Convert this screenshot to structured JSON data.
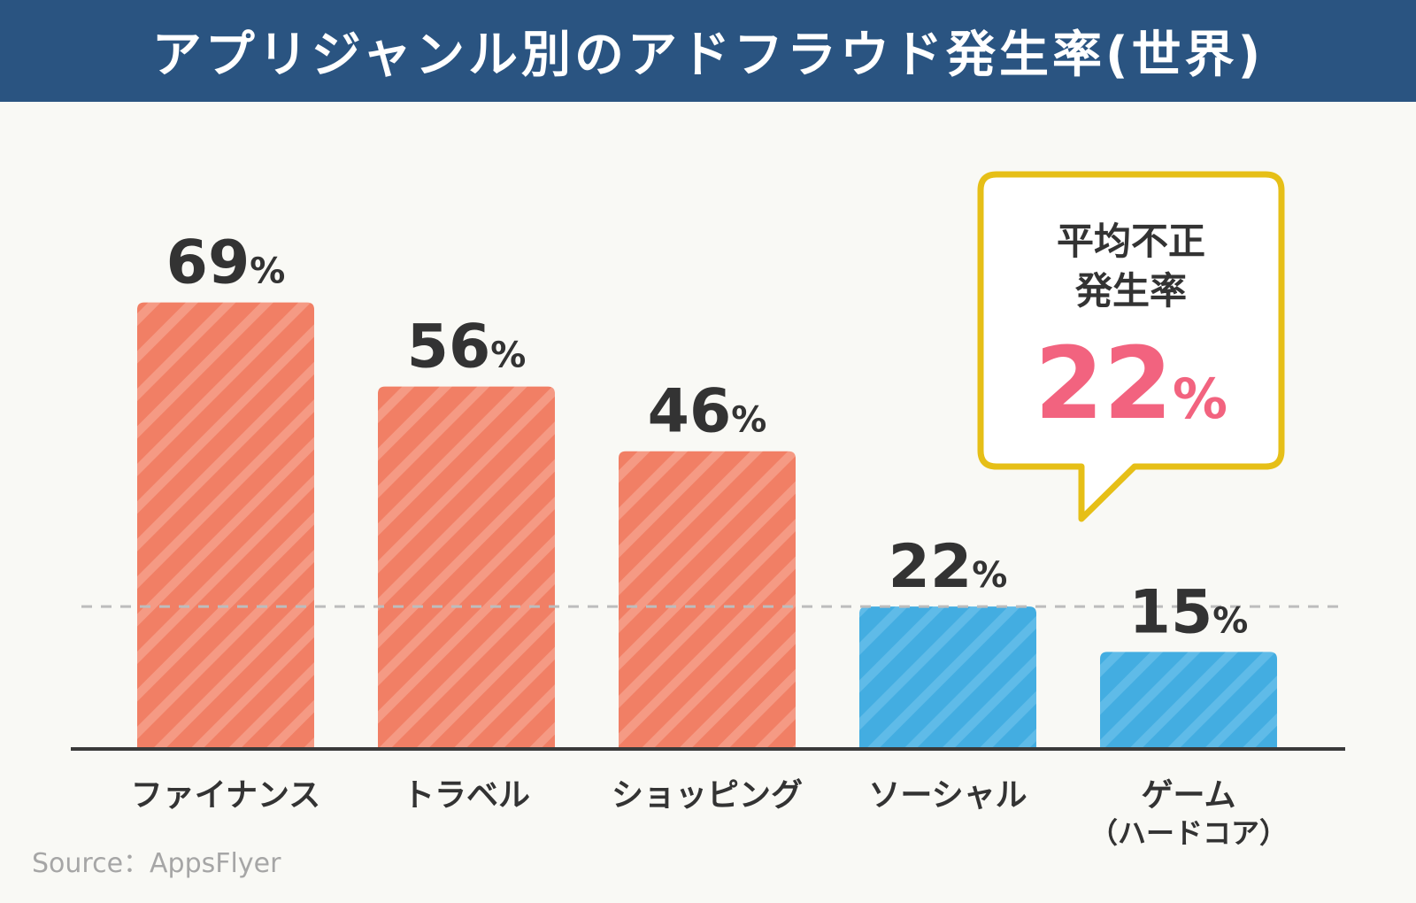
{
  "header": {
    "title": "アプリジャンル別のアドフラウド発生率(世界)"
  },
  "chart_data": {
    "type": "bar",
    "title": "アプリジャンル別のアドフラウド発生率(世界)",
    "categories": [
      {
        "line1": "ファイナンス",
        "line2": ""
      },
      {
        "line1": "トラベル",
        "line2": ""
      },
      {
        "line1": "ショッピング",
        "line2": ""
      },
      {
        "line1": "ソーシャル",
        "line2": ""
      },
      {
        "line1": "ゲーム",
        "line2": "（ハードコア）"
      }
    ],
    "values": [
      69,
      56,
      46,
      22,
      15
    ],
    "value_unit": "%",
    "ylim": [
      0,
      100
    ],
    "grid": false,
    "average_line": {
      "value": 22,
      "style": "dashed"
    },
    "callout": {
      "line1": "平均不正",
      "line2": "発生率",
      "value": "22",
      "unit": "%"
    },
    "colors": {
      "above_average": "#f17f65",
      "at_or_below_average": "#43ade1",
      "stripe": "#f59a84",
      "stripe_blue": "#5fbbe8",
      "value_label": "#333333",
      "callout_border": "#e6bf17",
      "callout_value": "#f2637f",
      "axis": "#3a3a3a",
      "average_line": "#bdbdbd"
    }
  },
  "footer": {
    "source": "Source：AppsFlyer"
  }
}
